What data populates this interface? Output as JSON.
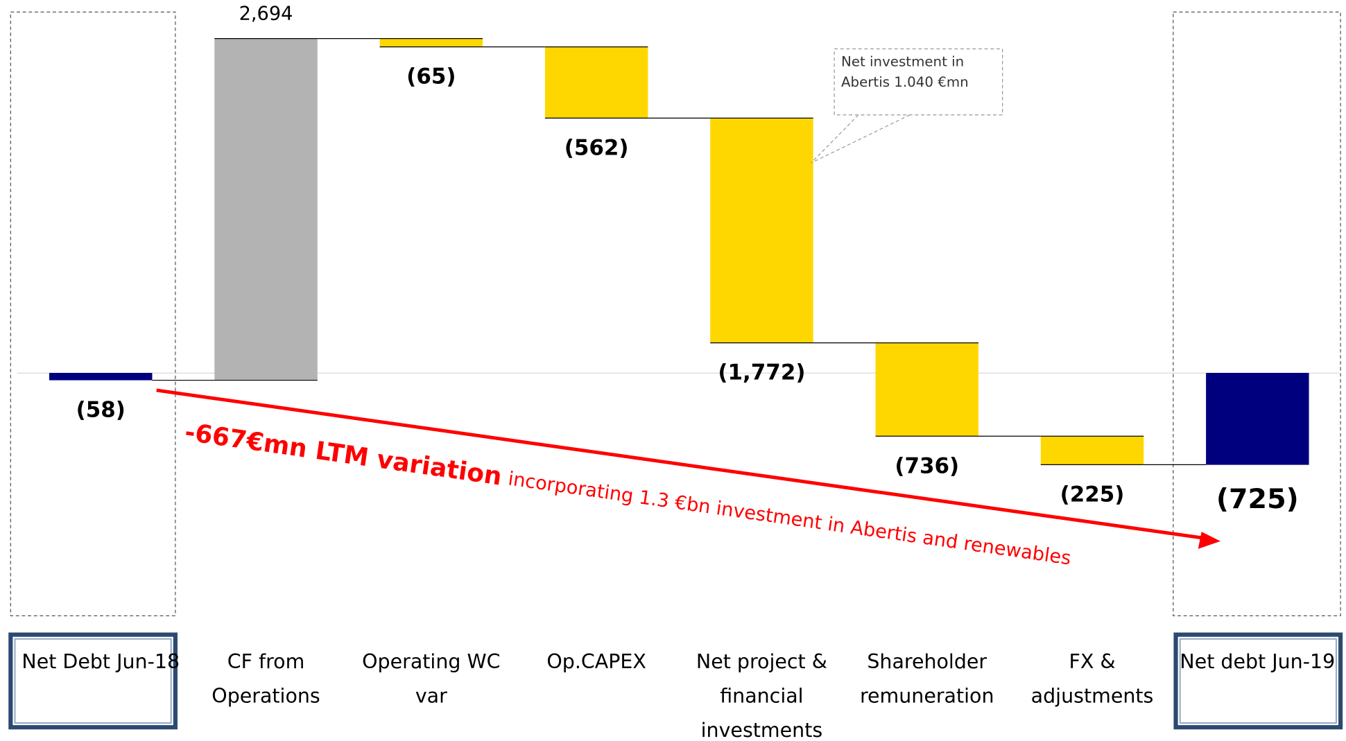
{
  "chart_data": {
    "type": "waterfall",
    "categories": [
      "Net Debt Jun-18",
      "CF from Operations",
      "Operating WC var",
      "Op.CAPEX",
      "Net project & financial investments",
      "Shareholder remuneration",
      "FX & adjustments",
      "Net debt Jun-19"
    ],
    "values": [
      -58,
      2694,
      -65,
      -562,
      -1772,
      -736,
      -225,
      -725
    ],
    "value_labels": [
      "(58)",
      "2,694",
      "(65)",
      "(562)",
      "(1,772)",
      "(736)",
      "(225)",
      "(725)"
    ],
    "measure": [
      "absolute",
      "relative",
      "relative",
      "relative",
      "relative",
      "relative",
      "relative",
      "total"
    ],
    "colors": [
      "#00007f",
      "#b3b3b3",
      "#ffd700",
      "#ffd700",
      "#ffd700",
      "#ffd700",
      "#ffd700",
      "#00007f"
    ],
    "annotations": {
      "callout": "Net investment in Abertis 1.040 €mn",
      "variation_bold": "-667€mn LTM variation",
      "variation_text": "incorporating 1.3 €bn investment in Abertis and renewables"
    }
  }
}
